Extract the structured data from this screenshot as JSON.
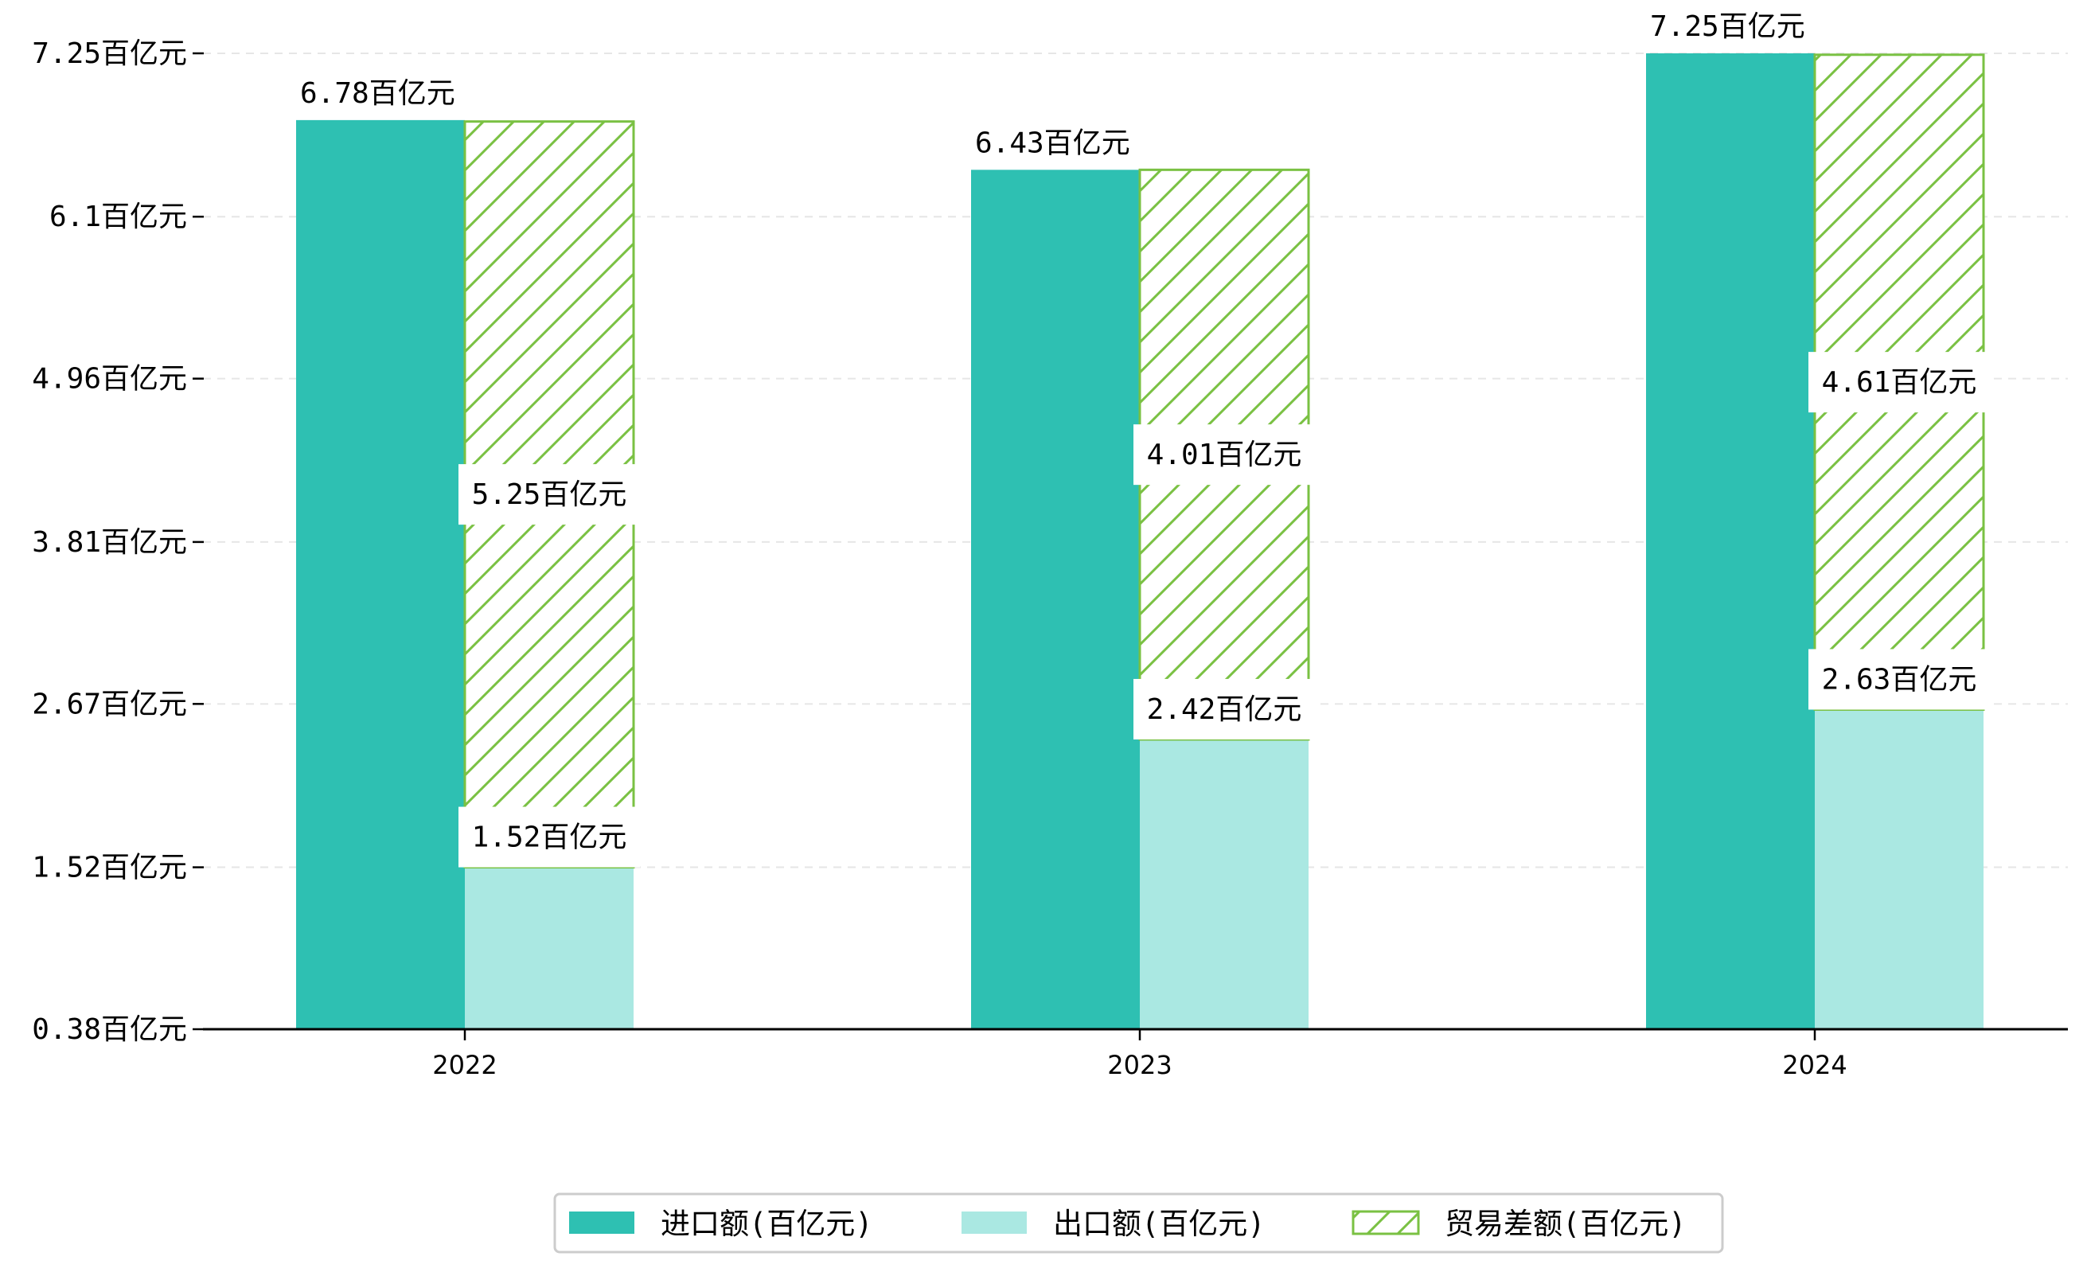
{
  "chart_data": {
    "type": "bar",
    "categories": [
      "2022",
      "2023",
      "2024"
    ],
    "series": [
      {
        "name": "进口额(百亿元)",
        "values": [
          6.78,
          6.43,
          7.25
        ],
        "labels": [
          "6.78百亿元",
          "6.43百亿元",
          "7.25百亿元"
        ],
        "color": "#2ec0b2"
      },
      {
        "name": "出口额(百亿元)",
        "values": [
          1.52,
          2.42,
          2.63
        ],
        "labels": [
          "1.52百亿元",
          "2.42百亿元",
          "2.63百亿元"
        ],
        "color": "#aae8e2"
      },
      {
        "name": "贸易差额(百亿元)",
        "values": [
          5.25,
          4.01,
          4.61
        ],
        "labels": [
          "5.25百亿元",
          "4.01百亿元",
          "4.61百亿元"
        ],
        "color": "#7ac143",
        "pattern": "hatch"
      }
    ],
    "y_ticks": [
      0.38,
      1.52,
      2.67,
      3.81,
      4.96,
      6.1,
      7.25
    ],
    "y_tick_labels": [
      "0.38百亿元",
      "1.52百亿元",
      "2.67百亿元",
      "3.81百亿元",
      "4.96百亿元",
      "6.1百亿元",
      "7.25百亿元"
    ],
    "ylim": [
      0.38,
      7.25
    ],
    "grid": true,
    "legend_position": "bottom-center",
    "title": "",
    "xlabel": "",
    "ylabel": ""
  }
}
